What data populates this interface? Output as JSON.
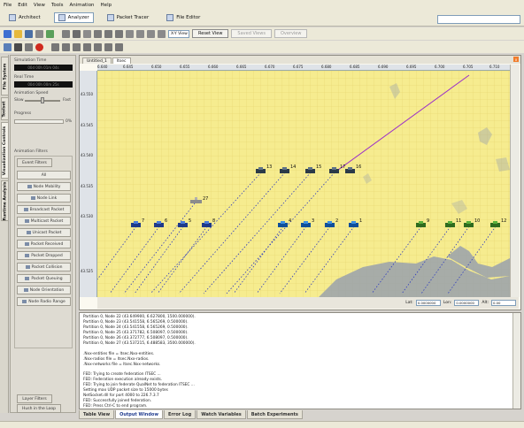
{
  "menu": [
    "File",
    "Edit",
    "View",
    "Tools",
    "Animation",
    "Help"
  ],
  "modes": [
    {
      "label": "Architect",
      "active": false
    },
    {
      "label": "Analyzer",
      "active": true
    },
    {
      "label": "Packet Tracer",
      "active": false
    },
    {
      "label": "File Editor",
      "active": false
    }
  ],
  "toolbar": {
    "view_select": "X-Y View",
    "reset_view": "Reset View",
    "saved_views": "Saved Views",
    "overview": "Overview"
  },
  "side_tabs": [
    "File System",
    "Toolset",
    "Visualization Controls",
    "Runtime Analysis"
  ],
  "panel": {
    "simulation_time_label": "Simulation Time",
    "simulation_time_value": "00d 00h 01m 04s",
    "real_time_label": "Real Time",
    "real_time_value": "00d 00h 00m 25s",
    "animation_speed_label": "Animation Speed",
    "slow_label": "Slow",
    "fast_label": "Fast",
    "progress_label": "Progress",
    "progress_value": "0%",
    "animation_filters_label": "Animation Filters",
    "event_filters_label": "Event Filters",
    "filter_buttons": [
      "All",
      "Node Mobility",
      "Node Link",
      "Broadcast Packet",
      "Multicast Packet",
      "Unicast Packet",
      "Packet Received",
      "Packet Dropped",
      "Packet Collision",
      "Packet Queuing",
      "Node Orientation",
      "Node Radio Range"
    ],
    "layer_filters_label": "Layer Filters",
    "layer_filter_button": "Hush in the Loop"
  },
  "doc_tabs": [
    {
      "label": "Untitled_1",
      "active": false
    },
    {
      "label": "ltsec",
      "active": true
    }
  ],
  "ruler_x": [
    "6.640",
    "6.645",
    "6.650",
    "6.655",
    "6.660",
    "6.665",
    "6.670",
    "6.675",
    "6.680",
    "6.685",
    "6.690",
    "6.695",
    "6.700",
    "6.705",
    "6.710"
  ],
  "ruler_y": [
    "43.550",
    "43.545",
    "43.540",
    "43.535",
    "43.530",
    "43.525"
  ],
  "coords": {
    "lat_label": "Lat:",
    "lat_value": "0.0000000",
    "lon_label": "Lon:",
    "lon_value": "0.0000000",
    "alt_label": "Alt:",
    "alt_value": "0.00"
  },
  "nodes": [
    "7",
    "6",
    "5",
    "8",
    "4",
    "3",
    "2",
    "1",
    "9",
    "11",
    "10",
    "12",
    "13",
    "14",
    "15",
    "17",
    "16",
    "27"
  ],
  "output_lines": [
    "Partition 0, Node 22 (43.649900, 6.627800, 1500.000000).",
    "Partition 0, Node 23 (43.541558, 6.565269, 0.500000).",
    "Partition 0, Node 24 (43.541558, 6.565269, 0.500000).",
    "Partition 0, Node 25 (43.371782, 6.508097, 0.500000).",
    "Partition 0, Node 26 (43.372777, 6.508097, 0.500000).",
    "Partition 0, Node 27 (43.537215, 6.488583, 3500.000000).",
    "",
    ".Nxx-entities file = ltsec.Nxx-entities.",
    ".Nxx-radios file = ltsec.Nxx-radios.",
    ".Nxx-networks file = ltsec.Nxx-networks.",
    "",
    "FED: Trying to create federation ITSEC ...",
    "FED: Federation execution already exists.",
    "FED: Trying to join federate QualNet to federation ITSEC ...",
    "Setting max UDP packet size to 15000 bytes",
    "NetSocket.dll for port 4000 to 226.7.3.7",
    "FED: Successfully joined federation.",
    "FED: Press Ctrl-C to end program."
  ],
  "bottom_tabs": [
    {
      "label": "Table View",
      "active": false
    },
    {
      "label": "Output Window",
      "active": true
    },
    {
      "label": "Error Log",
      "active": false
    },
    {
      "label": "Watch Variables",
      "active": false
    },
    {
      "label": "Batch Experiments",
      "active": false
    }
  ],
  "colors": {
    "map_bg": "#f6ec8f",
    "grid": "#e2d06a",
    "trail": "#2d3bbf",
    "link": "#9b2fc9",
    "water": "#9aa2ad"
  }
}
